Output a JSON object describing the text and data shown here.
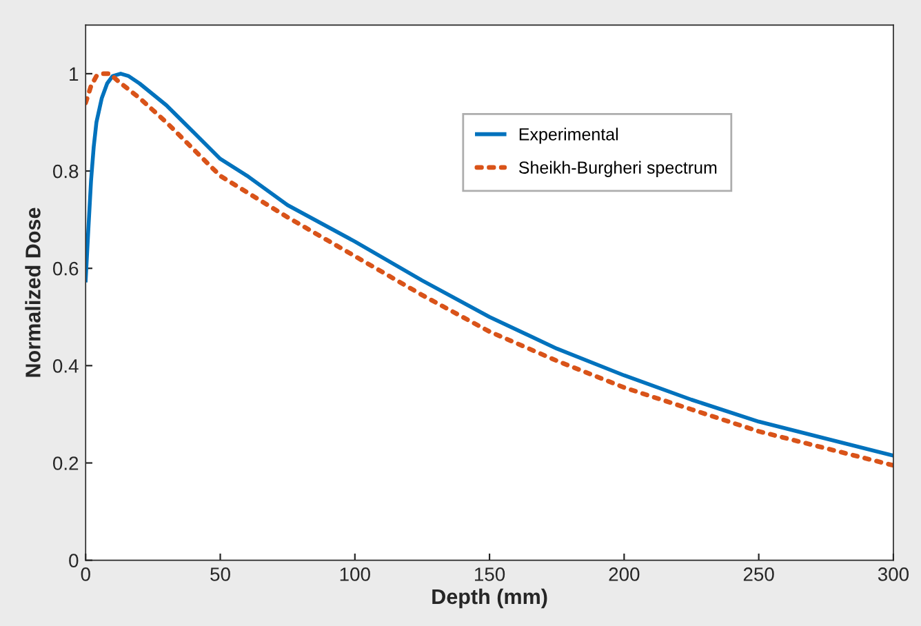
{
  "chart_data": {
    "type": "line",
    "xlabel": "Depth (mm)",
    "ylabel": "Normalized Dose",
    "xlim": [
      0,
      300
    ],
    "xticks": [
      0,
      50,
      100,
      150,
      200,
      250,
      300
    ],
    "ylim": [
      0,
      1.1
    ],
    "yticks": [
      0,
      0.2,
      0.4,
      0.6,
      0.8,
      1
    ],
    "grid": false,
    "legend": "top right",
    "marker": "none",
    "series": [
      {
        "name": "Experimental",
        "color": "#0072bd",
        "line_style": "solid",
        "x": [
          0,
          1,
          2,
          3,
          4,
          6,
          8,
          10,
          13,
          16,
          20,
          30,
          40,
          50,
          60,
          75,
          100,
          125,
          150,
          175,
          200,
          225,
          250,
          275,
          300
        ],
        "values": [
          0.575,
          0.68,
          0.78,
          0.85,
          0.9,
          0.95,
          0.98,
          0.995,
          1.0,
          0.995,
          0.98,
          0.935,
          0.88,
          0.825,
          0.79,
          0.73,
          0.655,
          0.575,
          0.5,
          0.435,
          0.38,
          0.33,
          0.285,
          0.25,
          0.215
        ]
      },
      {
        "name": "Sheikh-Burgheri spectrum",
        "color": "#d95319",
        "line_style": "dotted",
        "x": [
          0,
          2,
          4,
          6,
          9,
          12,
          20,
          30,
          40,
          50,
          75,
          100,
          125,
          150,
          175,
          200,
          225,
          250,
          275,
          300
        ],
        "values": [
          0.94,
          0.975,
          0.995,
          1.0,
          1.0,
          0.985,
          0.95,
          0.9,
          0.845,
          0.79,
          0.705,
          0.625,
          0.545,
          0.47,
          0.41,
          0.355,
          0.31,
          0.265,
          0.23,
          0.195
        ]
      }
    ]
  }
}
